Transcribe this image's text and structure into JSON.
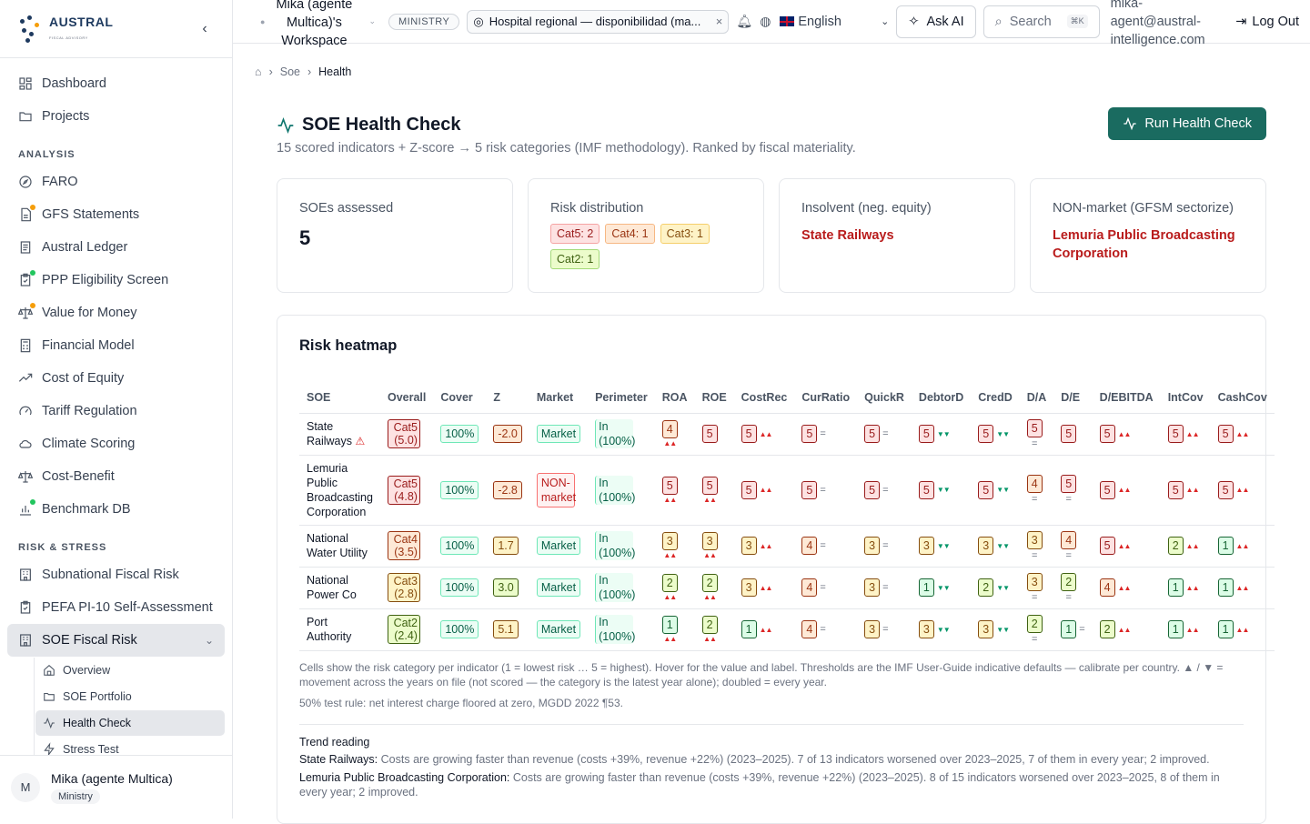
{
  "workspace": {
    "name": "Mika (agente Multica)'s Workspace",
    "badge": "MINISTRY"
  },
  "context": {
    "label": "Hospital regional — disponibilidad (ma..."
  },
  "topbar": {
    "language": "English",
    "ask_ai": "Ask AI",
    "search": "Search",
    "shortcut": "⌘K",
    "email": "mika-agent@austral-intelligence.com",
    "logout": "Log Out"
  },
  "logo": {
    "name": "AUSTRAL",
    "tagline": "FISCAL ADVISORY"
  },
  "nav": {
    "top": [
      {
        "label": "Dashboard",
        "icon": "dashboard-icon"
      },
      {
        "label": "Projects",
        "icon": "folder-icon"
      }
    ],
    "analysis_label": "ANALYSIS",
    "analysis": [
      {
        "label": "FARO",
        "icon": "compass-icon",
        "dot": ""
      },
      {
        "label": "GFS Statements",
        "icon": "file-icon",
        "dot": "o"
      },
      {
        "label": "Austral Ledger",
        "icon": "ledger-icon",
        "dot": ""
      },
      {
        "label": "PPP Eligibility Screen",
        "icon": "clipboard-icon",
        "dot": "g"
      },
      {
        "label": "Value for Money",
        "icon": "scale-icon",
        "dot": "o"
      },
      {
        "label": "Financial Model",
        "icon": "calculator-icon",
        "dot": ""
      },
      {
        "label": "Cost of Equity",
        "icon": "trending-icon",
        "dot": ""
      },
      {
        "label": "Tariff Regulation",
        "icon": "gauge-icon",
        "dot": ""
      },
      {
        "label": "Climate Scoring",
        "icon": "cloud-icon",
        "dot": ""
      },
      {
        "label": "Cost-Benefit",
        "icon": "scale-icon",
        "dot": ""
      },
      {
        "label": "Benchmark DB",
        "icon": "chart-icon",
        "dot": "g"
      }
    ],
    "risk_label": "RISK & STRESS",
    "risk": [
      {
        "label": "Subnational Fiscal Risk",
        "icon": "building-icon"
      },
      {
        "label": "PEFA PI-10 Self-Assessment",
        "icon": "clipboard-icon"
      }
    ],
    "active": "SOE Fiscal Risk",
    "sub": [
      {
        "label": "Overview",
        "icon": "home-icon"
      },
      {
        "label": "SOE Portfolio",
        "icon": "folder-icon"
      },
      {
        "label": "Health Check",
        "icon": "activity-icon"
      },
      {
        "label": "Stress Test",
        "icon": "zap-icon"
      }
    ]
  },
  "user": {
    "initial": "M",
    "name": "Mika (agente Multica)",
    "role": "Ministry"
  },
  "breadcrumb": [
    "Soe",
    "Health"
  ],
  "page": {
    "title": "SOE Health Check",
    "subtitle": "15 scored indicators + Z-score → 5 risk categories (IMF methodology). Ranked by fiscal materiality.",
    "run_button": "Run Health Check"
  },
  "cards": {
    "assessed_label": "SOEs assessed",
    "assessed_value": "5",
    "dist_label": "Risk distribution",
    "dist": [
      {
        "text": "Cat5: 2",
        "cls": "c5"
      },
      {
        "text": "Cat4: 1",
        "cls": "c4"
      },
      {
        "text": "Cat3: 1",
        "cls": "c3"
      },
      {
        "text": "Cat2: 1",
        "cls": "c2"
      }
    ],
    "insolvent_label": "Insolvent (neg. equity)",
    "insolvent_value": "State Railways",
    "nonmarket_label": "NON-market (GFSM sectorize)",
    "nonmarket_value": "Lemuria Public Broadcasting Corporation"
  },
  "heatmap": {
    "title": "Risk heatmap",
    "headers": [
      "SOE",
      "Overall",
      "Cover",
      "Z",
      "Market",
      "Perimeter",
      "ROA",
      "ROE",
      "CostRec",
      "CurRatio",
      "QuickR",
      "DebtorD",
      "CredD",
      "D/A",
      "D/E",
      "D/EBITDA",
      "IntCov",
      "CashCov"
    ],
    "rows": [
      {
        "soe": "State Railways",
        "warn": true,
        "overall": "Cat5 (5.0)",
        "ocat": 5,
        "cover": "100%",
        "z": "-2.0",
        "zcat": 4,
        "market": "Market",
        "mkt_ok": true,
        "perimeter": "In (100%)",
        "cells": [
          [
            4,
            "up",
            "v"
          ],
          [
            5,
            "",
            ""
          ],
          [
            5,
            "up",
            "h"
          ],
          [
            5,
            "eq",
            "h"
          ],
          [
            5,
            "eq",
            "h"
          ],
          [
            5,
            "dn",
            "h"
          ],
          [
            5,
            "dn",
            "h"
          ],
          [
            5,
            "eq",
            "v"
          ],
          [
            5,
            "",
            ""
          ],
          [
            5,
            "up",
            "h"
          ],
          [
            5,
            "up",
            "h"
          ],
          [
            5,
            "up",
            "h"
          ]
        ]
      },
      {
        "soe": "Lemuria Public Broadcasting Corporation",
        "warn": false,
        "overall": "Cat5 (4.8)",
        "ocat": 5,
        "cover": "100%",
        "z": "-2.8",
        "zcat": 4,
        "market": "NON-market",
        "mkt_ok": false,
        "perimeter": "In (100%)",
        "cells": [
          [
            5,
            "up",
            "v"
          ],
          [
            5,
            "up",
            "v"
          ],
          [
            5,
            "up",
            "h"
          ],
          [
            5,
            "eq",
            "h"
          ],
          [
            5,
            "eq",
            "h"
          ],
          [
            5,
            "dn",
            "h"
          ],
          [
            5,
            "dn",
            "h"
          ],
          [
            4,
            "eq",
            "v"
          ],
          [
            5,
            "eq",
            "v"
          ],
          [
            5,
            "up",
            "h"
          ],
          [
            5,
            "up",
            "h"
          ],
          [
            5,
            "up",
            "h"
          ]
        ]
      },
      {
        "soe": "National Water Utility",
        "warn": false,
        "overall": "Cat4 (3.5)",
        "ocat": 4,
        "cover": "100%",
        "z": "1.7",
        "zcat": 3,
        "market": "Market",
        "mkt_ok": true,
        "perimeter": "In (100%)",
        "cells": [
          [
            3,
            "up",
            "v"
          ],
          [
            3,
            "up",
            "v"
          ],
          [
            3,
            "up",
            "h"
          ],
          [
            4,
            "eq",
            "h"
          ],
          [
            3,
            "eq",
            "h"
          ],
          [
            3,
            "dn",
            "h"
          ],
          [
            3,
            "dn",
            "h"
          ],
          [
            3,
            "eq",
            "v"
          ],
          [
            4,
            "eq",
            "v"
          ],
          [
            5,
            "up",
            "h"
          ],
          [
            2,
            "up",
            "h"
          ],
          [
            1,
            "up",
            "h"
          ]
        ]
      },
      {
        "soe": "National Power Co",
        "warn": false,
        "overall": "Cat3 (2.8)",
        "ocat": 3,
        "cover": "100%",
        "z": "3.0",
        "zcat": 2,
        "market": "Market",
        "mkt_ok": true,
        "perimeter": "In (100%)",
        "cells": [
          [
            2,
            "up",
            "v"
          ],
          [
            2,
            "up",
            "v"
          ],
          [
            3,
            "up",
            "h"
          ],
          [
            4,
            "eq",
            "h"
          ],
          [
            3,
            "eq",
            "h"
          ],
          [
            1,
            "dn",
            "h"
          ],
          [
            2,
            "dn",
            "h"
          ],
          [
            3,
            "eq",
            "v"
          ],
          [
            2,
            "eq",
            "v"
          ],
          [
            4,
            "up",
            "h"
          ],
          [
            1,
            "up",
            "h"
          ],
          [
            1,
            "up",
            "h"
          ]
        ]
      },
      {
        "soe": "Port Authority",
        "warn": false,
        "overall": "Cat2 (2.4)",
        "ocat": 2,
        "cover": "100%",
        "z": "5.1",
        "zcat": 3,
        "market": "Market",
        "mkt_ok": true,
        "perimeter": "In (100%)",
        "cells": [
          [
            1,
            "up",
            "v"
          ],
          [
            2,
            "up",
            "v"
          ],
          [
            1,
            "up",
            "h"
          ],
          [
            4,
            "eq",
            "h"
          ],
          [
            3,
            "eq",
            "h"
          ],
          [
            3,
            "dn",
            "h"
          ],
          [
            3,
            "dn",
            "h"
          ],
          [
            2,
            "eq",
            "v"
          ],
          [
            1,
            "eq",
            "h"
          ],
          [
            2,
            "up",
            "h"
          ],
          [
            1,
            "up",
            "h"
          ],
          [
            1,
            "up",
            "h"
          ]
        ]
      }
    ],
    "note": "Cells show the risk category per indicator (1 = lowest risk … 5 = highest). Hover for the value and label. Thresholds are the IMF User-Guide indicative defaults — calibrate per country. ▲ / ▼ = movement across the years on file (not scored — the category is the latest year alone); doubled = every year.",
    "note2": "50% test rule: net interest charge floored at zero, MGDD 2022 ¶53.",
    "trend_title": "Trend reading",
    "trends": [
      {
        "name": "State Railways:",
        "text": "Costs are growing faster than revenue (costs +39%, revenue +22%) (2023–2025). 7 of 13 indicators worsened over 2023–2025, 7 of them in every year; 2 improved."
      },
      {
        "name": "Lemuria Public Broadcasting Corporation:",
        "text": "Costs are growing faster than revenue (costs +39%, revenue +22%) (2023–2025). 8 of 15 indicators worsened over 2023–2025, 8 of them in every year; 2 improved."
      }
    ]
  }
}
